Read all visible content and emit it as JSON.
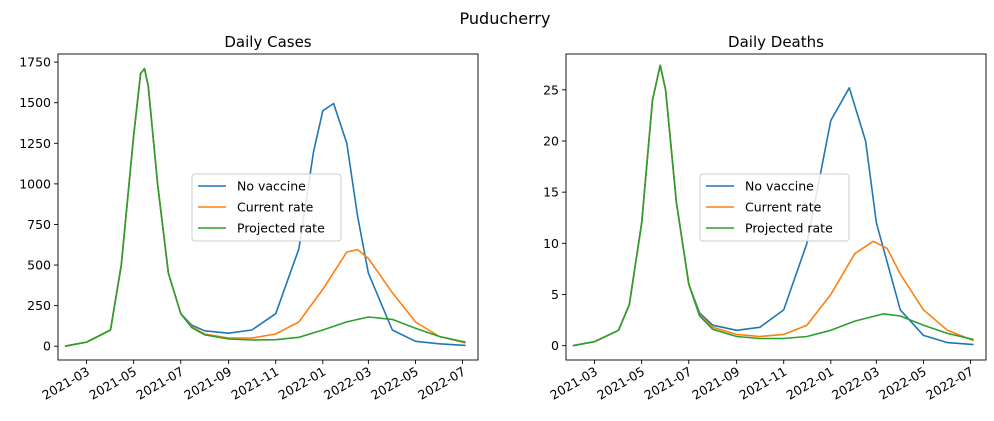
{
  "figure": {
    "suptitle": "Puducherry"
  },
  "colors": {
    "No vaccine": "#1f77b4",
    "Current rate": "#ff7f0e",
    "Projected rate": "#2ca02c"
  },
  "chart_data": [
    {
      "type": "line",
      "title": "Daily Cases",
      "xlabel": "",
      "ylabel": "",
      "x_ticks": [
        "2021-03",
        "2021-05",
        "2021-07",
        "2021-09",
        "2021-11",
        "2022-01",
        "2022-03",
        "2022-05",
        "2022-07"
      ],
      "y_ticks": [
        0,
        250,
        500,
        750,
        1000,
        1250,
        1500,
        1750
      ],
      "xlim": [
        "2021-01-23",
        "2022-07-21"
      ],
      "ylim": [
        -85,
        1800
      ],
      "grid": false,
      "legend": "center",
      "series": [
        {
          "name": "No vaccine",
          "x": [
            "2021-02-01",
            "2021-03-01",
            "2021-04-01",
            "2021-04-15",
            "2021-05-01",
            "2021-05-10",
            "2021-05-15",
            "2021-05-20",
            "2021-06-01",
            "2021-06-15",
            "2021-07-01",
            "2021-07-15",
            "2021-08-01",
            "2021-09-01",
            "2021-10-01",
            "2021-11-01",
            "2021-12-01",
            "2021-12-20",
            "2022-01-01",
            "2022-01-15",
            "2022-02-01",
            "2022-02-15",
            "2022-03-01",
            "2022-04-01",
            "2022-05-01",
            "2022-06-01",
            "2022-07-05"
          ],
          "y": [
            0,
            25,
            100,
            500,
            1300,
            1680,
            1710,
            1600,
            1000,
            450,
            200,
            130,
            95,
            80,
            100,
            200,
            600,
            1200,
            1450,
            1495,
            1250,
            800,
            450,
            100,
            30,
            15,
            5
          ]
        },
        {
          "name": "Current rate",
          "x": [
            "2021-02-01",
            "2021-03-01",
            "2021-04-01",
            "2021-04-15",
            "2021-05-01",
            "2021-05-10",
            "2021-05-15",
            "2021-05-20",
            "2021-06-01",
            "2021-06-15",
            "2021-07-01",
            "2021-07-15",
            "2021-08-01",
            "2021-09-01",
            "2021-10-01",
            "2021-11-01",
            "2021-12-01",
            "2022-01-01",
            "2022-02-01",
            "2022-02-15",
            "2022-03-01",
            "2022-04-01",
            "2022-05-01",
            "2022-06-01",
            "2022-07-05"
          ],
          "y": [
            0,
            25,
            100,
            500,
            1300,
            1680,
            1710,
            1600,
            1000,
            450,
            200,
            120,
            75,
            50,
            50,
            75,
            150,
            350,
            580,
            595,
            540,
            330,
            150,
            60,
            20
          ]
        },
        {
          "name": "Projected rate",
          "x": [
            "2021-02-01",
            "2021-03-01",
            "2021-04-01",
            "2021-04-15",
            "2021-05-01",
            "2021-05-10",
            "2021-05-15",
            "2021-05-20",
            "2021-06-01",
            "2021-06-15",
            "2021-07-01",
            "2021-07-15",
            "2021-08-01",
            "2021-09-01",
            "2021-10-01",
            "2021-11-01",
            "2021-12-01",
            "2022-01-01",
            "2022-02-01",
            "2022-03-01",
            "2022-04-01",
            "2022-05-01",
            "2022-06-01",
            "2022-07-05"
          ],
          "y": [
            0,
            25,
            100,
            500,
            1300,
            1680,
            1710,
            1600,
            1000,
            450,
            200,
            115,
            70,
            45,
            38,
            40,
            55,
            100,
            150,
            180,
            165,
            110,
            60,
            25
          ]
        }
      ]
    },
    {
      "type": "line",
      "title": "Daily Deaths",
      "xlabel": "",
      "ylabel": "",
      "x_ticks": [
        "2021-03",
        "2021-05",
        "2021-07",
        "2021-09",
        "2021-11",
        "2022-01",
        "2022-03",
        "2022-05",
        "2022-07"
      ],
      "y_ticks": [
        0,
        5,
        10,
        15,
        20,
        25
      ],
      "xlim": [
        "2021-01-23",
        "2022-07-21"
      ],
      "ylim": [
        -1.4,
        28.5
      ],
      "grid": false,
      "legend": "center",
      "series": [
        {
          "name": "No vaccine",
          "x": [
            "2021-02-01",
            "2021-03-01",
            "2021-04-01",
            "2021-04-15",
            "2021-05-01",
            "2021-05-15",
            "2021-05-25",
            "2021-06-01",
            "2021-06-15",
            "2021-07-01",
            "2021-07-15",
            "2021-08-01",
            "2021-09-01",
            "2021-10-01",
            "2021-11-01",
            "2021-12-01",
            "2022-01-01",
            "2022-01-25",
            "2022-02-15",
            "2022-03-01",
            "2022-04-01",
            "2022-05-01",
            "2022-06-01",
            "2022-07-05"
          ],
          "y": [
            0,
            0.4,
            1.5,
            4,
            12,
            24,
            27.4,
            25,
            14,
            6,
            3.2,
            2,
            1.5,
            1.8,
            3.5,
            10,
            22,
            25.2,
            20,
            12,
            3.5,
            1,
            0.3,
            0.1
          ]
        },
        {
          "name": "Current rate",
          "x": [
            "2021-02-01",
            "2021-03-01",
            "2021-04-01",
            "2021-04-15",
            "2021-05-01",
            "2021-05-15",
            "2021-05-25",
            "2021-06-01",
            "2021-06-15",
            "2021-07-01",
            "2021-07-15",
            "2021-08-01",
            "2021-09-01",
            "2021-10-01",
            "2021-11-01",
            "2021-12-01",
            "2022-01-01",
            "2022-02-01",
            "2022-02-25",
            "2022-03-15",
            "2022-04-01",
            "2022-05-01",
            "2022-06-01",
            "2022-07-05"
          ],
          "y": [
            0,
            0.4,
            1.5,
            4,
            12,
            24,
            27.4,
            25,
            14,
            6,
            3,
            1.8,
            1.1,
            0.9,
            1.1,
            2,
            5,
            9,
            10.2,
            9.5,
            7,
            3.5,
            1.5,
            0.5
          ]
        },
        {
          "name": "Projected rate",
          "x": [
            "2021-02-01",
            "2021-03-01",
            "2021-04-01",
            "2021-04-15",
            "2021-05-01",
            "2021-05-15",
            "2021-05-25",
            "2021-06-01",
            "2021-06-15",
            "2021-07-01",
            "2021-07-15",
            "2021-08-01",
            "2021-09-01",
            "2021-10-01",
            "2021-11-01",
            "2021-12-01",
            "2022-01-01",
            "2022-02-01",
            "2022-03-10",
            "2022-04-01",
            "2022-05-01",
            "2022-06-01",
            "2022-07-05"
          ],
          "y": [
            0,
            0.4,
            1.5,
            4,
            12,
            24,
            27.4,
            25,
            14,
            6,
            2.9,
            1.6,
            0.9,
            0.7,
            0.7,
            0.9,
            1.5,
            2.4,
            3.1,
            2.9,
            2,
            1.2,
            0.6
          ]
        }
      ]
    }
  ]
}
